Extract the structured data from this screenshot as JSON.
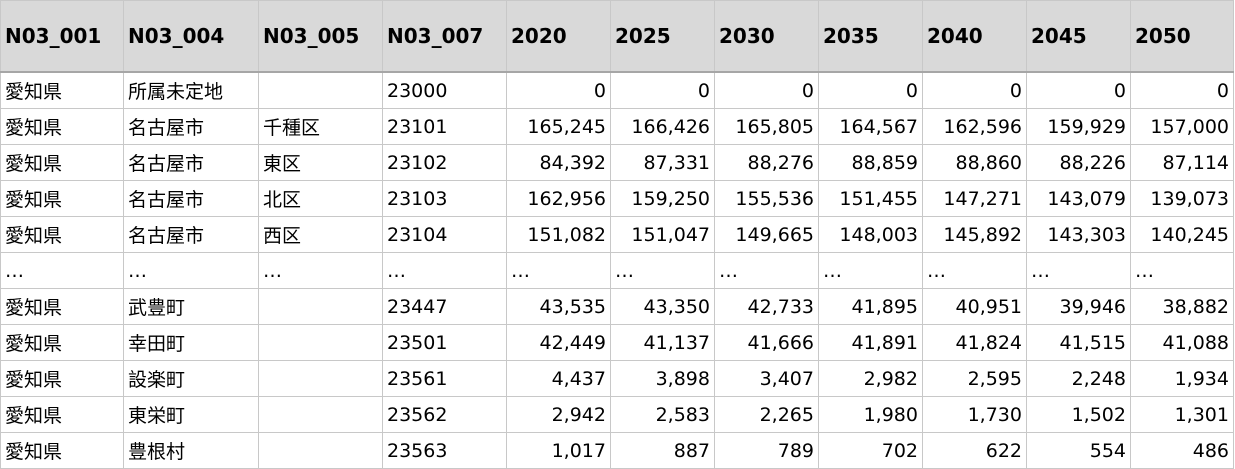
{
  "headers": [
    "N03_001",
    "N03_004",
    "N03_005",
    "N03_007",
    "2020",
    "2025",
    "2030",
    "2035",
    "2040",
    "2045",
    "2050"
  ],
  "rows": [
    [
      "愛知県",
      "所属未定地",
      "",
      "23000",
      "0",
      "0",
      "0",
      "0",
      "0",
      "0",
      "0"
    ],
    [
      "愛知県",
      "名古屋市",
      "千種区",
      "23101",
      "165,245",
      "166,426",
      "165,805",
      "164,567",
      "162,596",
      "159,929",
      "157,000"
    ],
    [
      "愛知県",
      "名古屋市",
      "東区",
      "23102",
      "84,392",
      "87,331",
      "88,276",
      "88,859",
      "88,860",
      "88,226",
      "87,114"
    ],
    [
      "愛知県",
      "名古屋市",
      "北区",
      "23103",
      "162,956",
      "159,250",
      "155,536",
      "151,455",
      "147,271",
      "143,079",
      "139,073"
    ],
    [
      "愛知県",
      "名古屋市",
      "西区",
      "23104",
      "151,082",
      "151,047",
      "149,665",
      "148,003",
      "145,892",
      "143,303",
      "140,245"
    ],
    [
      "…",
      "…",
      "…",
      "…",
      "…",
      "…",
      "…",
      "…",
      "…",
      "…",
      "…"
    ],
    [
      "愛知県",
      "武豊町",
      "",
      "23447",
      "43,535",
      "43,350",
      "42,733",
      "41,895",
      "40,951",
      "39,946",
      "38,882"
    ],
    [
      "愛知県",
      "幸田町",
      "",
      "23501",
      "42,449",
      "41,137",
      "41,666",
      "41,891",
      "41,824",
      "41,515",
      "41,088"
    ],
    [
      "愛知県",
      "設楽町",
      "",
      "23561",
      "4,437",
      "3,898",
      "3,407",
      "2,982",
      "2,595",
      "2,248",
      "1,934"
    ],
    [
      "愛知県",
      "東栄町",
      "",
      "23562",
      "2,942",
      "2,583",
      "2,265",
      "1,980",
      "1,730",
      "1,502",
      "1,301"
    ],
    [
      "愛知県",
      "豊根村",
      "",
      "23563",
      "1,017",
      "887",
      "789",
      "702",
      "622",
      "554",
      "486"
    ]
  ]
}
